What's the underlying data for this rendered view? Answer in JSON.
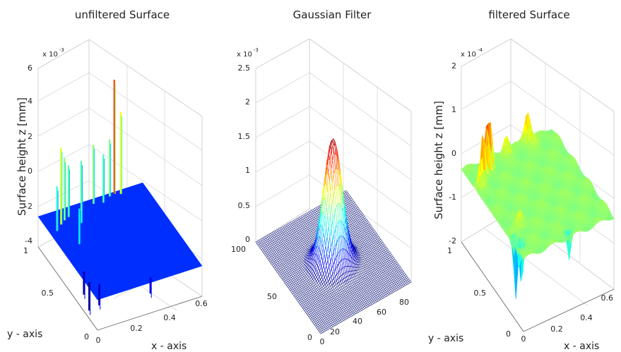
{
  "chart_data": [
    {
      "type": "surface",
      "title": "unfiltered Surface",
      "zlabel": "Surface height z [mm]",
      "xlabel": "x - axis",
      "ylabel": "y - axis",
      "z_multiplier": "x 10",
      "z_exponent": "-3",
      "zticks": [
        "-4",
        "-2",
        "0",
        "2",
        "4",
        "6"
      ],
      "zlim": [
        -4,
        6
      ],
      "xticks": [
        "0",
        "0.2",
        "0.4",
        "0.6"
      ],
      "xlim": [
        0,
        0.6
      ],
      "yticks": [
        "0",
        "0.5",
        "1"
      ],
      "ylim": [
        0,
        1
      ],
      "base_level": -2.3,
      "colormap": "jet",
      "color_range": [
        -4,
        6
      ],
      "features": [
        {
          "x": 0.08,
          "y": 0.85,
          "z": 2.0
        },
        {
          "x": 0.11,
          "y": 0.88,
          "z": 1.2
        },
        {
          "x": 0.14,
          "y": 0.9,
          "z": 0.6
        },
        {
          "x": 0.04,
          "y": 0.8,
          "z": 0.2
        },
        {
          "x": 0.18,
          "y": 0.8,
          "z": 0.1
        },
        {
          "x": 0.22,
          "y": 0.92,
          "z": 0.5
        },
        {
          "x": 0.3,
          "y": 0.95,
          "z": 1.0
        },
        {
          "x": 0.43,
          "y": 0.98,
          "z": 4.1
        },
        {
          "x": 0.46,
          "y": 0.96,
          "z": 2.3
        },
        {
          "x": 0.4,
          "y": 0.97,
          "z": 0.9
        },
        {
          "x": 0.35,
          "y": 0.93,
          "z": 0.4
        },
        {
          "x": 0.1,
          "y": 0.6,
          "z": -0.3
        },
        {
          "x": 0.02,
          "y": 0.2,
          "z": -3.9
        },
        {
          "x": 0.06,
          "y": 0.15,
          "z": -3.5
        },
        {
          "x": 0.03,
          "y": 0.32,
          "z": -3.6
        },
        {
          "x": 0.32,
          "y": 0.05,
          "z": -3.2
        }
      ]
    },
    {
      "type": "surface",
      "title": "Gaussian Filter",
      "z_multiplier": "x 10",
      "z_exponent": "-3",
      "zticks": [
        "0",
        "0.5",
        "1",
        "1.5",
        "2",
        "2.5"
      ],
      "zlim": [
        0,
        2.5
      ],
      "xticks": [
        "0",
        "20",
        "40",
        "60",
        "80"
      ],
      "xlim": [
        0,
        85
      ],
      "yticks": [
        "0",
        "50",
        "100"
      ],
      "ylim": [
        0,
        100
      ],
      "gaussian": {
        "center_x": 42,
        "center_y": 50,
        "sigma": 7.5,
        "peak": 1.78
      },
      "colormap": "jet",
      "base_color": "#3c4190"
    },
    {
      "type": "surface",
      "title": "filtered Surface",
      "zlabel": "Surface height z [mm]",
      "xlabel": "x - axis",
      "ylabel": "y - axis",
      "z_multiplier": "x 10",
      "z_exponent": "-4",
      "zticks": [
        "-2",
        "-1",
        "0",
        "1",
        "2"
      ],
      "zlim": [
        -2,
        2
      ],
      "xticks": [
        "0",
        "0.2",
        "0.4",
        "0.6"
      ],
      "xlim": [
        0,
        0.6
      ],
      "yticks": [
        "0",
        "0.5",
        "1"
      ],
      "ylim": [
        0,
        1
      ],
      "base_level": -0.35,
      "colormap": "jet",
      "color_range": [
        -2,
        1.2
      ],
      "features": [
        {
          "x": 0.08,
          "y": 0.85,
          "z": 0.7,
          "s": 0.014
        },
        {
          "x": 0.12,
          "y": 0.88,
          "z": 0.85,
          "s": 0.014
        },
        {
          "x": 0.15,
          "y": 0.9,
          "z": 0.8,
          "s": 0.014
        },
        {
          "x": 0.04,
          "y": 0.78,
          "z": 0.25,
          "s": 0.016
        },
        {
          "x": 0.1,
          "y": 0.3,
          "z": 0.0,
          "s": 0.02
        },
        {
          "x": 0.28,
          "y": 0.95,
          "z": 0.1,
          "s": 0.02
        },
        {
          "x": 0.43,
          "y": 0.98,
          "z": 0.35,
          "s": 0.02
        },
        {
          "x": 0.45,
          "y": 0.92,
          "z": -0.1,
          "s": 0.02
        },
        {
          "x": 0.03,
          "y": 0.2,
          "z": -1.8,
          "s": 0.012
        },
        {
          "x": 0.05,
          "y": 0.16,
          "z": -1.5,
          "s": 0.012
        },
        {
          "x": 0.33,
          "y": 0.06,
          "z": -1.1,
          "s": 0.012
        }
      ]
    }
  ]
}
